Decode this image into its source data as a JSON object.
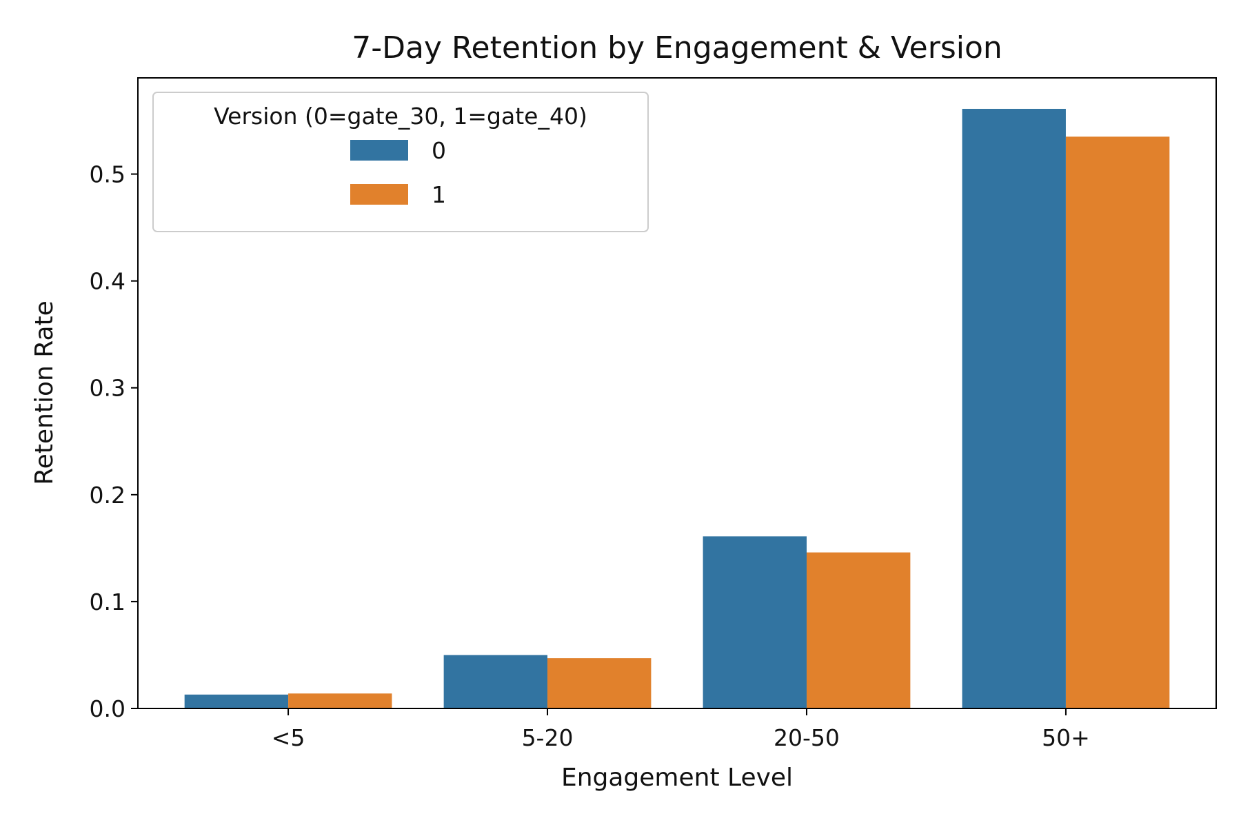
{
  "chart_data": {
    "type": "bar",
    "title": "7-Day Retention by Engagement & Version",
    "xlabel": "Engagement Level",
    "ylabel": "Retention Rate",
    "categories": [
      "<5",
      "5-20",
      "20-50",
      "50+"
    ],
    "series": [
      {
        "name": "0",
        "color": "#3274a1",
        "values": [
          0.013,
          0.05,
          0.161,
          0.561
        ]
      },
      {
        "name": "1",
        "color": "#e1812c",
        "values": [
          0.014,
          0.047,
          0.146,
          0.535
        ]
      }
    ],
    "ylim": [
      0,
      0.59
    ],
    "yticks": [
      0.0,
      0.1,
      0.2,
      0.3,
      0.4,
      0.5
    ],
    "ytick_labels": [
      "0.0",
      "0.1",
      "0.2",
      "0.3",
      "0.4",
      "0.5"
    ],
    "grid": false,
    "legend": {
      "title": "Version (0=gate_30, 1=gate_40)",
      "placement": "top-left",
      "entries": [
        "0",
        "1"
      ]
    }
  }
}
